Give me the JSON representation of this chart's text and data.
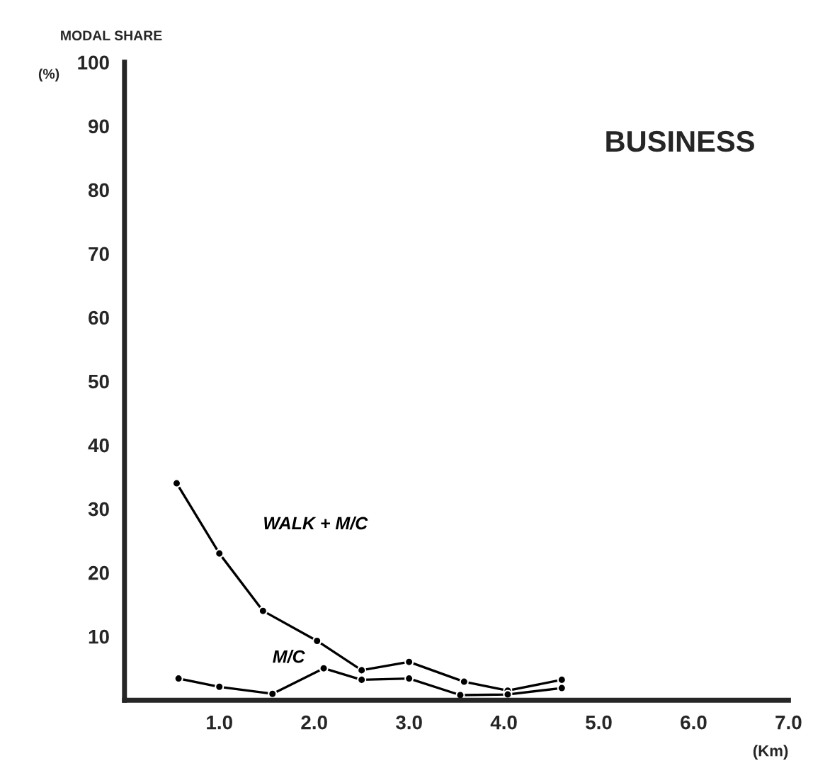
{
  "chart_data": {
    "type": "line",
    "title": "BUSINESS",
    "xlabel": "(Km)",
    "ylabel": "MODAL SHARE",
    "annotations": [
      "(%)"
    ],
    "series": [
      {
        "name": "WALK + M/C",
        "color": "#000000",
        "x": [
          0.55,
          1.0,
          1.46,
          2.03,
          2.5,
          3.0,
          3.58,
          4.04,
          4.61
        ],
        "values": [
          34,
          23,
          14,
          9.3,
          4.7,
          6,
          2.9,
          1.5,
          3.2
        ]
      },
      {
        "name": "M/C",
        "color": "#000000",
        "x": [
          0.57,
          1.0,
          1.56,
          2.1,
          2.5,
          3.0,
          3.54,
          4.04,
          4.61
        ],
        "values": [
          3.4,
          2.1,
          1.0,
          5.0,
          3.2,
          3.4,
          0.8,
          0.9,
          1.9
        ]
      }
    ],
    "xlim": [
      0,
      7
    ],
    "ylim": [
      0,
      100
    ],
    "xticks": [
      {
        "value": 1,
        "label": "1.0"
      },
      {
        "value": 2,
        "label": "2.0"
      },
      {
        "value": 3,
        "label": "3.0"
      },
      {
        "value": 4,
        "label": "4.0"
      },
      {
        "value": 5,
        "label": "5.0"
      },
      {
        "value": 6,
        "label": "6.0"
      },
      {
        "value": 7,
        "label": "7.0"
      }
    ],
    "yticks": [
      10,
      20,
      30,
      40,
      50,
      60,
      70,
      80,
      90,
      100
    ],
    "grid": false,
    "legend": false,
    "marker": "circle",
    "line_style": "solid"
  }
}
